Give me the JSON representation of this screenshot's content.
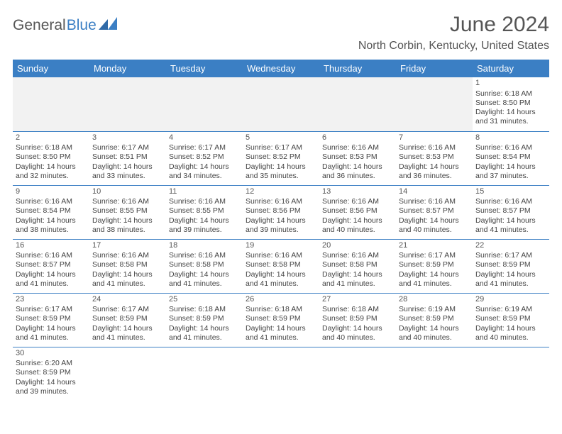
{
  "logo": {
    "text1": "General",
    "text2": "Blue"
  },
  "title": "June 2024",
  "location": "North Corbin, Kentucky, United States",
  "colors": {
    "header_bg": "#3b7fc4",
    "header_fg": "#ffffff",
    "blank_bg": "#f2f2f2",
    "rule": "#3b7fc4",
    "text": "#444444"
  },
  "weekdays": [
    "Sunday",
    "Monday",
    "Tuesday",
    "Wednesday",
    "Thursday",
    "Friday",
    "Saturday"
  ],
  "weeks": [
    [
      null,
      null,
      null,
      null,
      null,
      null,
      {
        "n": "1",
        "sr": "6:18 AM",
        "ss": "8:50 PM",
        "dl": "14 hours and 31 minutes."
      }
    ],
    [
      {
        "n": "2",
        "sr": "6:18 AM",
        "ss": "8:50 PM",
        "dl": "14 hours and 32 minutes."
      },
      {
        "n": "3",
        "sr": "6:17 AM",
        "ss": "8:51 PM",
        "dl": "14 hours and 33 minutes."
      },
      {
        "n": "4",
        "sr": "6:17 AM",
        "ss": "8:52 PM",
        "dl": "14 hours and 34 minutes."
      },
      {
        "n": "5",
        "sr": "6:17 AM",
        "ss": "8:52 PM",
        "dl": "14 hours and 35 minutes."
      },
      {
        "n": "6",
        "sr": "6:16 AM",
        "ss": "8:53 PM",
        "dl": "14 hours and 36 minutes."
      },
      {
        "n": "7",
        "sr": "6:16 AM",
        "ss": "8:53 PM",
        "dl": "14 hours and 36 minutes."
      },
      {
        "n": "8",
        "sr": "6:16 AM",
        "ss": "8:54 PM",
        "dl": "14 hours and 37 minutes."
      }
    ],
    [
      {
        "n": "9",
        "sr": "6:16 AM",
        "ss": "8:54 PM",
        "dl": "14 hours and 38 minutes."
      },
      {
        "n": "10",
        "sr": "6:16 AM",
        "ss": "8:55 PM",
        "dl": "14 hours and 38 minutes."
      },
      {
        "n": "11",
        "sr": "6:16 AM",
        "ss": "8:55 PM",
        "dl": "14 hours and 39 minutes."
      },
      {
        "n": "12",
        "sr": "6:16 AM",
        "ss": "8:56 PM",
        "dl": "14 hours and 39 minutes."
      },
      {
        "n": "13",
        "sr": "6:16 AM",
        "ss": "8:56 PM",
        "dl": "14 hours and 40 minutes."
      },
      {
        "n": "14",
        "sr": "6:16 AM",
        "ss": "8:57 PM",
        "dl": "14 hours and 40 minutes."
      },
      {
        "n": "15",
        "sr": "6:16 AM",
        "ss": "8:57 PM",
        "dl": "14 hours and 41 minutes."
      }
    ],
    [
      {
        "n": "16",
        "sr": "6:16 AM",
        "ss": "8:57 PM",
        "dl": "14 hours and 41 minutes."
      },
      {
        "n": "17",
        "sr": "6:16 AM",
        "ss": "8:58 PM",
        "dl": "14 hours and 41 minutes."
      },
      {
        "n": "18",
        "sr": "6:16 AM",
        "ss": "8:58 PM",
        "dl": "14 hours and 41 minutes."
      },
      {
        "n": "19",
        "sr": "6:16 AM",
        "ss": "8:58 PM",
        "dl": "14 hours and 41 minutes."
      },
      {
        "n": "20",
        "sr": "6:16 AM",
        "ss": "8:58 PM",
        "dl": "14 hours and 41 minutes."
      },
      {
        "n": "21",
        "sr": "6:17 AM",
        "ss": "8:59 PM",
        "dl": "14 hours and 41 minutes."
      },
      {
        "n": "22",
        "sr": "6:17 AM",
        "ss": "8:59 PM",
        "dl": "14 hours and 41 minutes."
      }
    ],
    [
      {
        "n": "23",
        "sr": "6:17 AM",
        "ss": "8:59 PM",
        "dl": "14 hours and 41 minutes."
      },
      {
        "n": "24",
        "sr": "6:17 AM",
        "ss": "8:59 PM",
        "dl": "14 hours and 41 minutes."
      },
      {
        "n": "25",
        "sr": "6:18 AM",
        "ss": "8:59 PM",
        "dl": "14 hours and 41 minutes."
      },
      {
        "n": "26",
        "sr": "6:18 AM",
        "ss": "8:59 PM",
        "dl": "14 hours and 41 minutes."
      },
      {
        "n": "27",
        "sr": "6:18 AM",
        "ss": "8:59 PM",
        "dl": "14 hours and 40 minutes."
      },
      {
        "n": "28",
        "sr": "6:19 AM",
        "ss": "8:59 PM",
        "dl": "14 hours and 40 minutes."
      },
      {
        "n": "29",
        "sr": "6:19 AM",
        "ss": "8:59 PM",
        "dl": "14 hours and 40 minutes."
      }
    ],
    [
      {
        "n": "30",
        "sr": "6:20 AM",
        "ss": "8:59 PM",
        "dl": "14 hours and 39 minutes."
      },
      null,
      null,
      null,
      null,
      null,
      null
    ]
  ],
  "labels": {
    "sunrise": "Sunrise:",
    "sunset": "Sunset:",
    "daylight": "Daylight:"
  }
}
